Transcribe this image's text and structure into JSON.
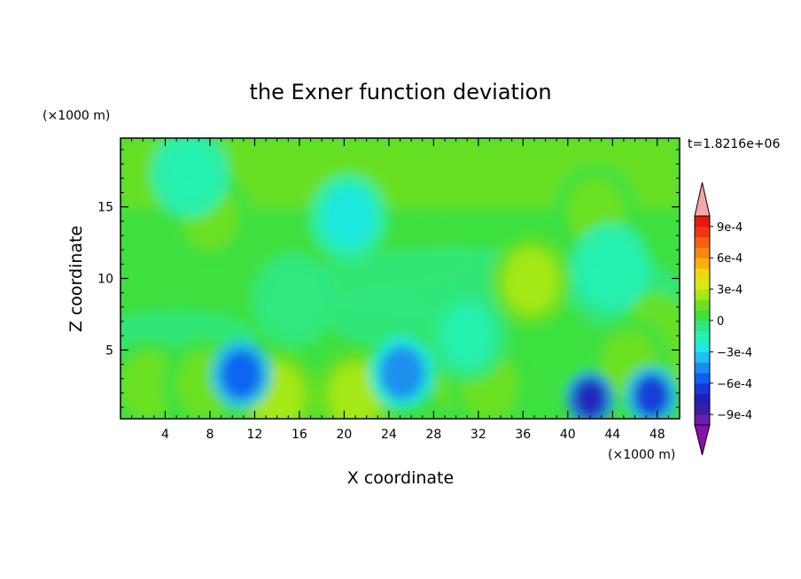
{
  "chart_data": {
    "type": "heatmap",
    "title": "the Exner function deviation",
    "xlabel": "X coordinate",
    "ylabel": "Z coordinate",
    "x_unit": "(×1000 m)",
    "y_unit": "(×1000 m)",
    "time_label": "t=1.8216e+06",
    "xlim": [
      0,
      50
    ],
    "ylim": [
      0.2,
      19.8
    ],
    "x_ticks": [
      4,
      8,
      12,
      16,
      20,
      24,
      28,
      32,
      36,
      40,
      44,
      48
    ],
    "y_ticks": [
      5,
      10,
      15
    ],
    "x_tick_labels": [
      "4",
      "8",
      "12",
      "16",
      "20",
      "24",
      "28",
      "32",
      "36",
      "40",
      "44",
      "48"
    ],
    "y_tick_labels": [
      "5",
      "10",
      "15"
    ],
    "colorbar": {
      "levels": [
        -0.001,
        -0.0009,
        -0.0008,
        -0.0007,
        -0.0006,
        -0.0005,
        -0.0004,
        -0.0003,
        -0.0002,
        -0.0001,
        0,
        0.0001,
        0.0002,
        0.0003,
        0.0004,
        0.0005,
        0.0006,
        0.0007,
        0.0008,
        0.0009,
        0.001
      ],
      "colors": [
        "#6a1db0",
        "#3a1fa0",
        "#2020b8",
        "#1838d8",
        "#1060f0",
        "#1d8cf0",
        "#22c0f2",
        "#1fe8e0",
        "#28f0b0",
        "#30e880",
        "#3ee040",
        "#6ee020",
        "#a8e818",
        "#d8e818",
        "#f0d810",
        "#f8b010",
        "#f88810",
        "#f86010",
        "#f03810",
        "#e81810"
      ],
      "under_color": "#8a10a8",
      "over_color": "#f5a7a7",
      "tick_values": [
        0.0009,
        0.0006,
        0.0003,
        0,
        -0.0003,
        -0.0006,
        -0.0009
      ],
      "tick_labels": [
        "9e-4",
        "6e-4",
        "3e-4",
        "0",
        "−3e-4",
        "−6e-4",
        "−9e-4"
      ]
    },
    "features": [
      {
        "x": 6.2,
        "z": 17.3,
        "value": -0.0002
      },
      {
        "x": 20.4,
        "z": 14.3,
        "value": -0.00025
      },
      {
        "x": 8.0,
        "z": 14.3,
        "value": 0.0001
      },
      {
        "x": 42.5,
        "z": 14.7,
        "value": 0.0001
      },
      {
        "x": 36.7,
        "z": 9.8,
        "value": 0.0002
      },
      {
        "x": 43.9,
        "z": 10.8,
        "value": -0.0002
      },
      {
        "x": 15.5,
        "z": 8.5,
        "value": -0.0001
      },
      {
        "x": 31.0,
        "z": 6.0,
        "value": -0.00015
      },
      {
        "x": 10.8,
        "z": 3.3,
        "value": -0.00055
      },
      {
        "x": 25.2,
        "z": 3.4,
        "value": -0.00045
      },
      {
        "x": 42.0,
        "z": 1.6,
        "value": -0.0008
      },
      {
        "x": 47.5,
        "z": 1.8,
        "value": -0.0007
      },
      {
        "x": 14.0,
        "z": 1.8,
        "value": 0.0002
      },
      {
        "x": 21.0,
        "z": 1.8,
        "value": 0.0002
      },
      {
        "x": 2.5,
        "z": 2.5,
        "value": 0.0001
      },
      {
        "x": 7.5,
        "z": 2.6,
        "value": 0.0001
      },
      {
        "x": 33.0,
        "z": 2.5,
        "value": 0.0001
      },
      {
        "x": 45.5,
        "z": 4.0,
        "value": 0.0001
      },
      {
        "x": 38.5,
        "z": 5.2,
        "value": 5e-05
      }
    ]
  }
}
